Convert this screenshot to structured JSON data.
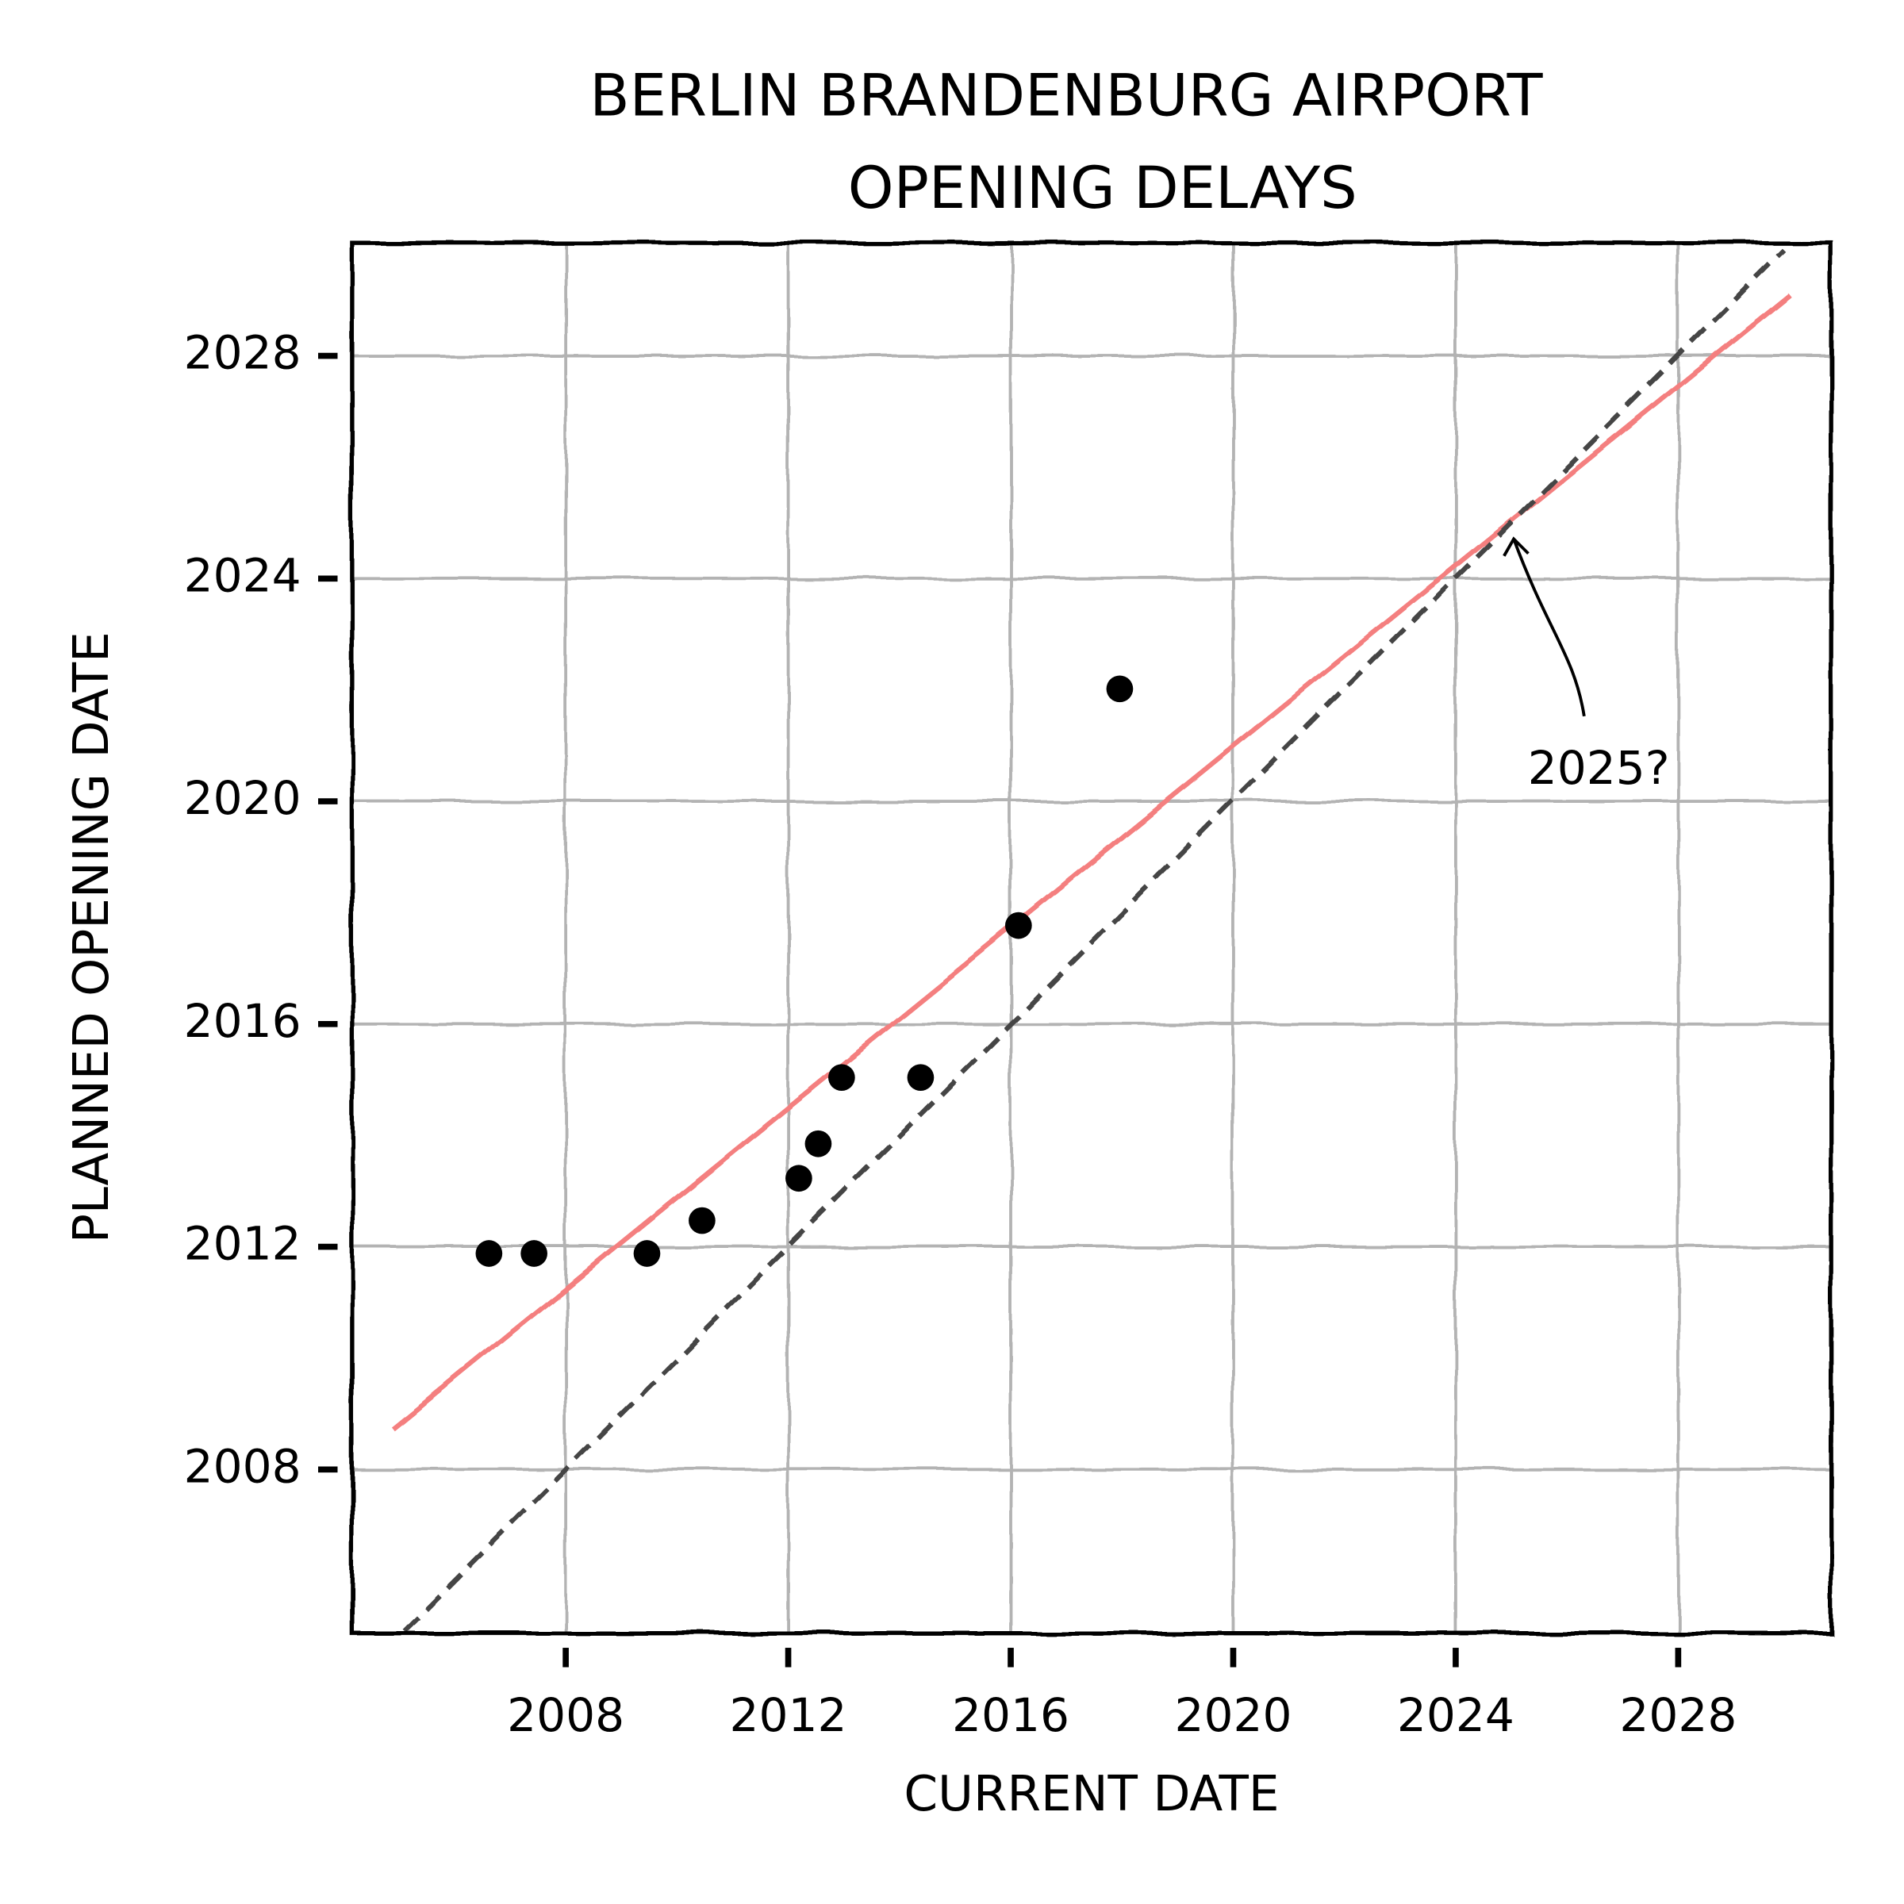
{
  "chart_data": {
    "type": "scatter",
    "title": [
      "BERLIN BRANDENBURG AIRPORT",
      "OPENING DELAYS"
    ],
    "x_label": "CURRENT DATE",
    "y_label": "PLANNED OPENING DATE",
    "x": [
      2006.62,
      2007.43,
      2009.46,
      2010.45,
      2012.19,
      2012.54,
      2012.96,
      2014.38,
      2016.14,
      2017.96
    ],
    "values": [
      2011.88,
      2011.88,
      2011.88,
      2012.47,
      2013.23,
      2013.85,
      2015.04,
      2015.04,
      2017.77,
      2022.02
    ],
    "color": "#000000",
    "lines": [
      {
        "x": [
          2004.88,
          2030.01
        ],
        "values": [
          2008.74,
          2029.09
        ],
        "color": "#f47f7f",
        "linestyle": "solid"
      },
      {
        "x": [
          2005.1,
          2029.9
        ],
        "values": [
          2005.1,
          2029.9
        ],
        "color": "#444444",
        "linestyle": "dashed"
      }
    ],
    "annotation": {
      "text": "2025?",
      "x": 2025.0,
      "y": 2024.8
    },
    "xlim": [
      2004.16,
      2030.75
    ],
    "ylim": [
      2005.06,
      2030.03
    ],
    "xticks": [
      2008,
      2012,
      2016,
      2020,
      2024,
      2028
    ],
    "yticks": [
      2008,
      2012,
      2016,
      2020,
      2024,
      2028
    ],
    "grid": true
  }
}
